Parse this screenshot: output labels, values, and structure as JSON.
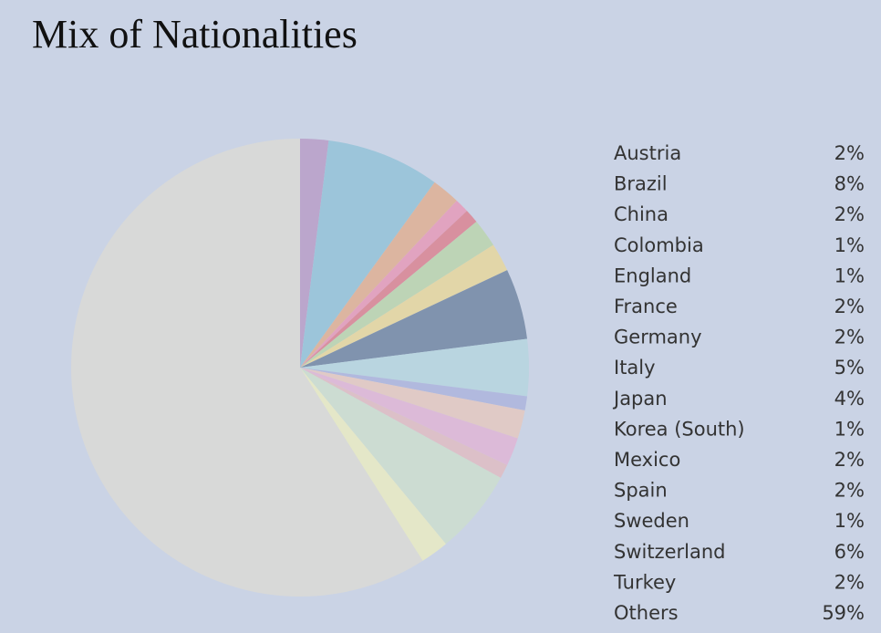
{
  "chart_data": {
    "type": "pie",
    "title": "Mix of Nationalities",
    "categories": [
      "Austria",
      "Brazil",
      "China",
      "Colombia",
      "England",
      "France",
      "Germany",
      "Italy",
      "Japan",
      "Korea (South)",
      "Mexico",
      "Spain",
      "Sweden",
      "Switzerland",
      "Turkey",
      "Others"
    ],
    "values": [
      2,
      8,
      2,
      1,
      1,
      2,
      2,
      5,
      4,
      1,
      2,
      2,
      1,
      6,
      2,
      59
    ],
    "value_labels": [
      "2%",
      "8%",
      "2%",
      "1%",
      "1%",
      "2%",
      "2%",
      "5%",
      "4%",
      "1%",
      "2%",
      "2%",
      "1%",
      "6%",
      "2%",
      "59%"
    ],
    "colors": [
      "#bba6cc",
      "#9cc5da",
      "#dcb5a0",
      "#e1a3c0",
      "#d8909f",
      "#bdd4b6",
      "#e2d6a8",
      "#8093ae",
      "#b9d5e0",
      "#b1b9de",
      "#e0cac6",
      "#dcbad8",
      "#dcc0c8",
      "#ccdcd2",
      "#e4e7c8",
      "#d8d9d8"
    ]
  }
}
